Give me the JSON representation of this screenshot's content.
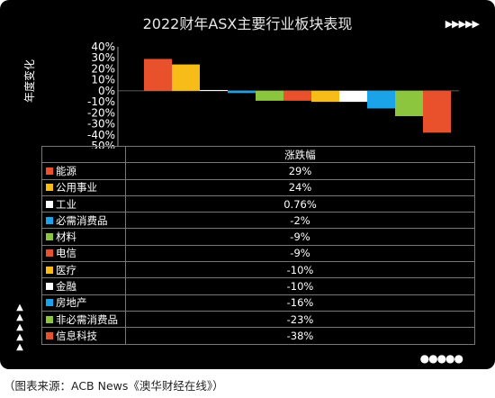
{
  "title": "2022财年ASX主要行业板块表现",
  "top_arrows_icon": "▶▶▶▶▶",
  "left_arrows_icon": "▲▲▲▲▲",
  "dots_icon": "●●●●●",
  "source_note": "（图表来源：ACB News《澳华财经在线》）",
  "chart_data": {
    "type": "bar",
    "ylabel": "年度变化",
    "ylim": [
      -50,
      40
    ],
    "yticks": [
      "40%",
      "30%",
      "20%",
      "10%",
      "0%",
      "-10%",
      "-20%",
      "-30%",
      "-40%",
      "-50%"
    ],
    "grid": false,
    "legend": "table-below",
    "table_header": "涨跌幅",
    "categories": [
      "能源",
      "公用事业",
      "工业",
      "必需消费品",
      "材料",
      "电信",
      "医疗",
      "金融",
      "房地产",
      "非必需消费品",
      "信息科技"
    ],
    "values": [
      29,
      24,
      0.76,
      -2,
      -9,
      -9,
      -10,
      -10,
      -16,
      -23,
      -38
    ],
    "labels": [
      "29%",
      "24%",
      "0.76%",
      "-2%",
      "-9%",
      "-9%",
      "-10%",
      "-10%",
      "-16%",
      "-23%",
      "-38%"
    ],
    "colors": [
      "#e8512b",
      "#f7bc18",
      "#ffffff",
      "#1aa3e8",
      "#8cc63f",
      "#e8512b",
      "#f7bc18",
      "#ffffff",
      "#1aa3e8",
      "#8cc63f",
      "#e8512b"
    ]
  }
}
